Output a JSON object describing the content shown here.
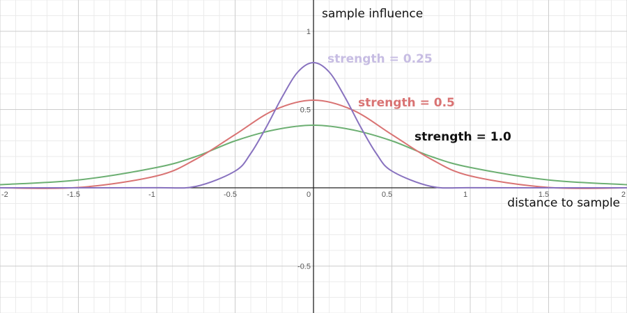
{
  "chart_data": {
    "type": "line",
    "xlabel": "distance to sample",
    "ylabel": "sample influence",
    "xlim": [
      -2,
      2
    ],
    "ylim": [
      -0.8,
      1.2
    ],
    "grid": true,
    "x_ticks": [
      "-2",
      "-1.5",
      "-1",
      "-0.5",
      "0",
      "0.5",
      "1",
      "1.5",
      "2"
    ],
    "y_ticks": [
      "1",
      "0.5",
      "-0.5"
    ],
    "series": [
      {
        "name": "strength = 0.25",
        "color": "#8872bf",
        "x": [
          -2,
          -1.5,
          -1,
          -0.75,
          -0.5,
          -0.4,
          -0.3,
          -0.2,
          -0.1,
          0,
          0.1,
          0.2,
          0.3,
          0.4,
          0.5,
          0.75,
          1,
          1.5,
          2
        ],
        "y": [
          0.0,
          0.0,
          0.0003,
          0.009,
          0.107,
          0.22,
          0.39,
          0.58,
          0.74,
          0.8,
          0.74,
          0.58,
          0.39,
          0.22,
          0.107,
          0.009,
          0.0003,
          0.0,
          0.0
        ]
      },
      {
        "name": "strength = 0.5",
        "color": "#d97373",
        "x": [
          -2,
          -1.5,
          -1,
          -0.75,
          -0.5,
          -0.25,
          0,
          0.25,
          0.5,
          0.75,
          1,
          1.5,
          2
        ],
        "y": [
          0.0,
          0.002,
          0.076,
          0.183,
          0.34,
          0.497,
          0.56,
          0.497,
          0.34,
          0.183,
          0.076,
          0.002,
          0.0
        ]
      },
      {
        "name": "strength = 1.0",
        "color": "#6caf72",
        "x": [
          -2,
          -1.5,
          -1,
          -0.75,
          -0.5,
          -0.25,
          0,
          0.25,
          0.5,
          0.75,
          1,
          1.5,
          2
        ],
        "y": [
          0.02,
          0.05,
          0.13,
          0.2,
          0.3,
          0.37,
          0.4,
          0.37,
          0.3,
          0.2,
          0.13,
          0.05,
          0.02
        ]
      }
    ],
    "annotations": [
      {
        "text": "strength = 0.25",
        "color": "#c7bde3"
      },
      {
        "text": "strength = 0.5",
        "color": "#d97373"
      },
      {
        "text": "strength = 1.0",
        "color": "#111111"
      }
    ]
  }
}
